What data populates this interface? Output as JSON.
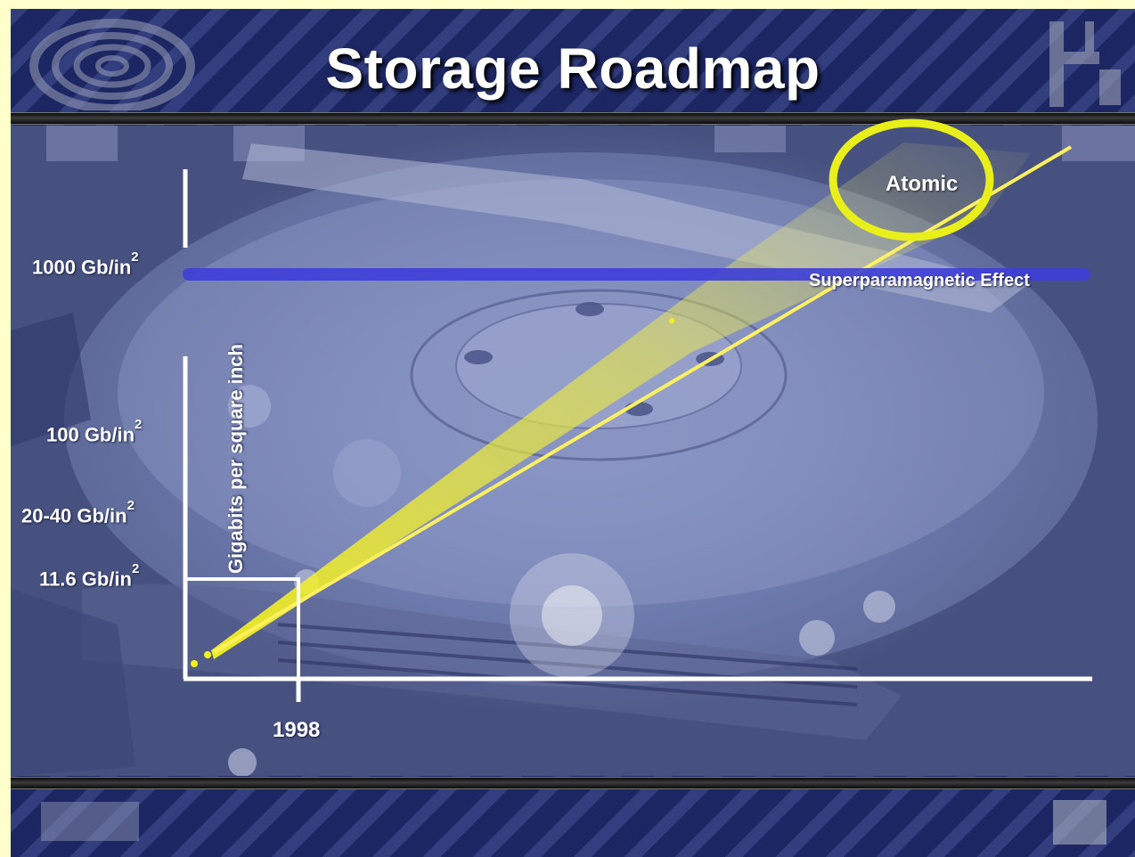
{
  "title": "Storage Roadmap",
  "y_axis": {
    "label": "Gigabits per square inch",
    "ticks": [
      {
        "value": "1000 Gb/in",
        "exp": "2"
      },
      {
        "value": "100 Gb/in",
        "exp": "2"
      },
      {
        "value": "20-40 Gb/in",
        "exp": "2"
      },
      {
        "value": "11.6 Gb/in",
        "exp": "2"
      }
    ]
  },
  "x_axis": {
    "tick": "1998"
  },
  "limit_line": {
    "label": "Superparamagnetic Effect",
    "color": "#3f3fd9"
  },
  "target": {
    "label": "Atomic",
    "color": "#e9ef1a"
  },
  "trend_color": "#f3f12a"
}
